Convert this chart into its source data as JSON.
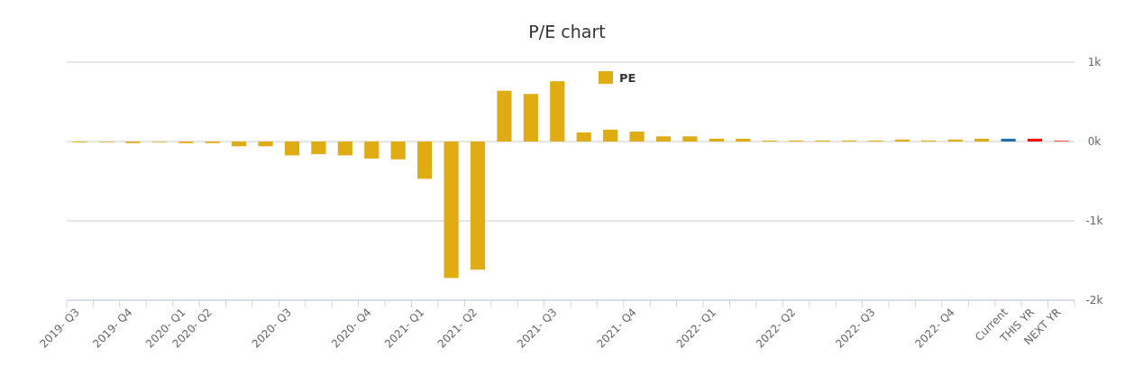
{
  "chart_data": {
    "type": "bar",
    "title": "P/E chart",
    "categories": [
      "2019- Q3",
      null,
      "2019- Q4",
      null,
      "2020- Q1",
      "2020- Q2",
      null,
      null,
      "2020- Q3",
      null,
      null,
      "2020- Q4",
      null,
      "2021- Q1",
      null,
      "2021- Q2",
      null,
      null,
      "2021- Q3",
      null,
      null,
      "2021- Q4",
      null,
      null,
      "2022- Q1",
      null,
      null,
      "2022- Q2",
      null,
      null,
      "2022- Q3",
      null,
      null,
      "2022- Q4",
      null,
      "Current",
      "THIS YR",
      "NEXT YR"
    ],
    "series": [
      {
        "name": "PE",
        "color": "#e0ac14",
        "values": [
          -10,
          -8,
          -20,
          -8,
          -20,
          -20,
          -60,
          -60,
          -175,
          -160,
          -175,
          -215,
          -225,
          -470,
          -1720,
          -1615,
          640,
          600,
          760,
          115,
          150,
          125,
          65,
          65,
          35,
          35,
          12,
          12,
          12,
          12,
          12,
          25,
          12,
          25,
          35,
          35,
          35,
          10
        ],
        "colors": [
          "#e0ac14",
          "#e0ac14",
          "#e0ac14",
          "#e0ac14",
          "#e0ac14",
          "#e0ac14",
          "#e0ac14",
          "#e0ac14",
          "#e0ac14",
          "#e0ac14",
          "#e0ac14",
          "#e0ac14",
          "#e0ac14",
          "#e0ac14",
          "#e0ac14",
          "#e0ac14",
          "#e0ac14",
          "#e0ac14",
          "#e0ac14",
          "#e0ac14",
          "#e0ac14",
          "#e0ac14",
          "#e0ac14",
          "#e0ac14",
          "#e0ac14",
          "#e0ac14",
          "#e0ac14",
          "#e0ac14",
          "#e0ac14",
          "#e0ac14",
          "#e0ac14",
          "#e0ac14",
          "#e0ac14",
          "#e0ac14",
          "#e0ac14",
          "#1f6fad",
          "#ff0000",
          "#ff3333"
        ]
      }
    ],
    "ylim": [
      -2000,
      1000
    ],
    "yticks": [
      {
        "value": 1000,
        "label": "1k"
      },
      {
        "value": 0,
        "label": "0k"
      },
      {
        "value": -1000,
        "label": "-1k"
      },
      {
        "value": -2000,
        "label": "-2k"
      }
    ],
    "grid": "y",
    "legend": "top"
  }
}
